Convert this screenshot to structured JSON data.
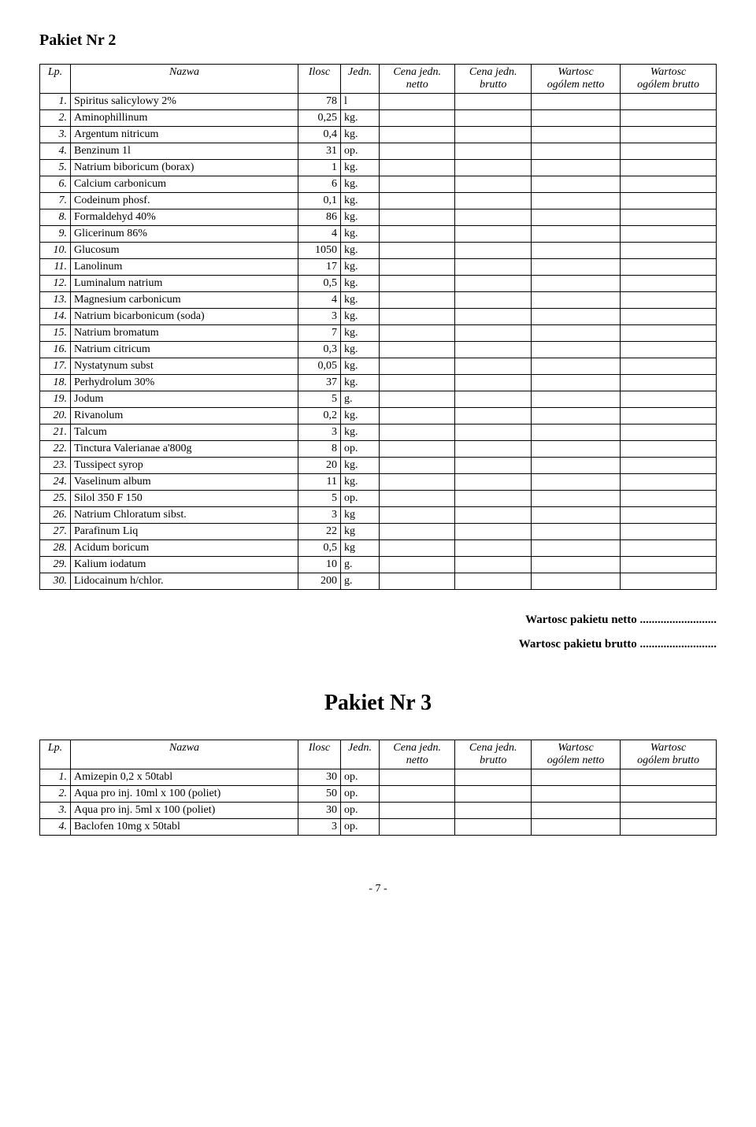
{
  "pakiet2": {
    "title": "Pakiet Nr 2",
    "headers": {
      "lp": "Lp.",
      "nazwa": "Nazwa",
      "ilosc": "Ilosc",
      "jedn": "Jedn.",
      "cjn1": "Cena jedn.",
      "cjn2": "netto",
      "cjb1": "Cena jedn.",
      "cjb2": "brutto",
      "won1": "Wartosc",
      "won2": "ogólem netto",
      "wob1": "Wartosc",
      "wob2": "ogólem brutto"
    },
    "rows": [
      {
        "lp": "1.",
        "nazwa": "Spiritus salicylowy 2%",
        "ilosc": "78",
        "jedn": "l"
      },
      {
        "lp": "2.",
        "nazwa": "Aminophillinum",
        "ilosc": "0,25",
        "jedn": "kg."
      },
      {
        "lp": "3.",
        "nazwa": "Argentum nitricum",
        "ilosc": "0,4",
        "jedn": "kg."
      },
      {
        "lp": "4.",
        "nazwa": "Benzinum  1l",
        "ilosc": "31",
        "jedn": "op."
      },
      {
        "lp": "5.",
        "nazwa": "Natrium biboricum (borax)",
        "ilosc": "1",
        "jedn": "kg."
      },
      {
        "lp": "6.",
        "nazwa": "Calcium carbonicum",
        "ilosc": "6",
        "jedn": "kg."
      },
      {
        "lp": "7.",
        "nazwa": "Codeinum phosf.",
        "ilosc": "0,1",
        "jedn": "kg."
      },
      {
        "lp": "8.",
        "nazwa": "Formaldehyd  40%",
        "ilosc": "86",
        "jedn": "kg."
      },
      {
        "lp": "9.",
        "nazwa": "Glicerinum  86%",
        "ilosc": "4",
        "jedn": "kg."
      },
      {
        "lp": "10.",
        "nazwa": "Glucosum",
        "ilosc": "1050",
        "jedn": "kg."
      },
      {
        "lp": "11.",
        "nazwa": "Lanolinum",
        "ilosc": "17",
        "jedn": "kg."
      },
      {
        "lp": "12.",
        "nazwa": "Luminalum natrium",
        "ilosc": "0,5",
        "jedn": "kg."
      },
      {
        "lp": "13.",
        "nazwa": "Magnesium carbonicum",
        "ilosc": "4",
        "jedn": "kg."
      },
      {
        "lp": "14.",
        "nazwa": "Natrium bicarbonicum (soda)",
        "ilosc": "3",
        "jedn": "kg."
      },
      {
        "lp": "15.",
        "nazwa": "Natrium bromatum",
        "ilosc": "7",
        "jedn": "kg."
      },
      {
        "lp": "16.",
        "nazwa": "Natrium citricum",
        "ilosc": "0,3",
        "jedn": "kg."
      },
      {
        "lp": "17.",
        "nazwa": "Nystatynum subst",
        "ilosc": "0,05",
        "jedn": "kg."
      },
      {
        "lp": "18.",
        "nazwa": "Perhydrolum 30%",
        "ilosc": "37",
        "jedn": "kg."
      },
      {
        "lp": "19.",
        "nazwa": "Jodum",
        "ilosc": "5",
        "jedn": "g."
      },
      {
        "lp": "20.",
        "nazwa": "Rivanolum",
        "ilosc": "0,2",
        "jedn": "kg."
      },
      {
        "lp": "21.",
        "nazwa": "Talcum",
        "ilosc": "3",
        "jedn": "kg."
      },
      {
        "lp": "22.",
        "nazwa": "Tinctura Valerianae  a'800g",
        "ilosc": "8",
        "jedn": "op."
      },
      {
        "lp": "23.",
        "nazwa": "Tussipect syrop",
        "ilosc": "20",
        "jedn": "kg."
      },
      {
        "lp": "24.",
        "nazwa": "Vaselinum album",
        "ilosc": "11",
        "jedn": "kg."
      },
      {
        "lp": "25.",
        "nazwa": "Silol 350 F 150",
        "ilosc": "5",
        "jedn": "op."
      },
      {
        "lp": "26.",
        "nazwa": "Natrium Chloratum sibst.",
        "ilosc": "3",
        "jedn": "kg"
      },
      {
        "lp": "27.",
        "nazwa": "Parafinum Liq",
        "ilosc": "22",
        "jedn": "kg"
      },
      {
        "lp": "28.",
        "nazwa": "Acidum boricum",
        "ilosc": "0,5",
        "jedn": "kg"
      },
      {
        "lp": "29.",
        "nazwa": "Kalium iodatum",
        "ilosc": "10",
        "jedn": "g."
      },
      {
        "lp": "30.",
        "nazwa": "Lidocainum h/chlor.",
        "ilosc": "200",
        "jedn": "g."
      }
    ]
  },
  "summary": {
    "netto": "Wartosc pakietu netto ..........................",
    "brutto": "Wartosc pakietu brutto .........................."
  },
  "pakiet3": {
    "title": "Pakiet Nr 3",
    "rows": [
      {
        "lp": "1.",
        "nazwa": "Amizepin 0,2 x 50tabl",
        "ilosc": "30",
        "jedn": "op."
      },
      {
        "lp": "2.",
        "nazwa": "Aqua pro inj. 10ml x 100 (poliet)",
        "ilosc": "50",
        "jedn": "op."
      },
      {
        "lp": "3.",
        "nazwa": "Aqua pro inj. 5ml x 100 (poliet)",
        "ilosc": "30",
        "jedn": "op."
      },
      {
        "lp": "4.",
        "nazwa": "Baclofen 10mg x 50tabl",
        "ilosc": "3",
        "jedn": "op."
      }
    ]
  },
  "pagenum": "- 7 -"
}
